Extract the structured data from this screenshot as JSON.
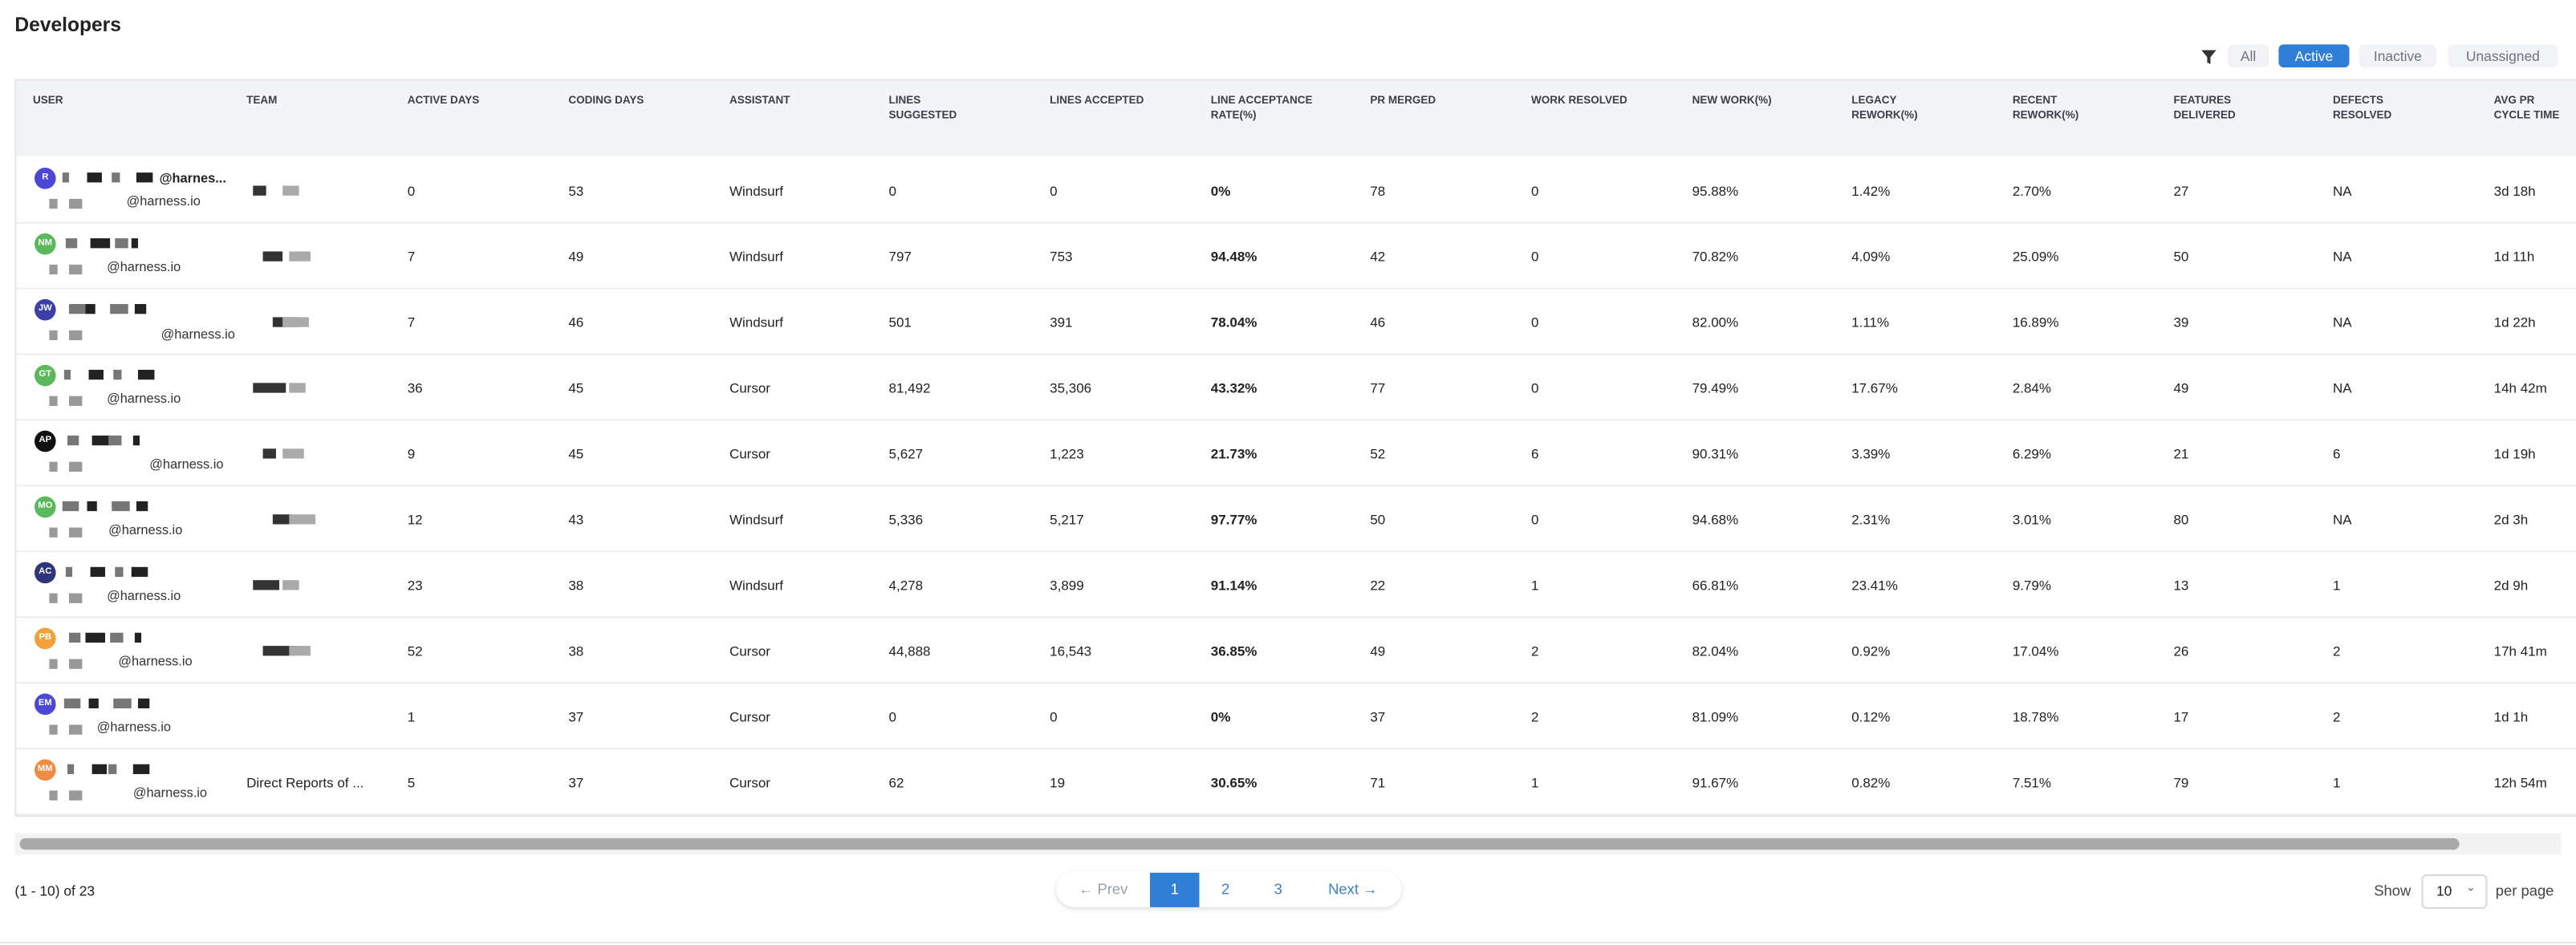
{
  "title": "Developers",
  "filters": [
    "All",
    "Active",
    "Inactive",
    "Unassigned"
  ],
  "table": {
    "columns": [
      "USER",
      "TEAM",
      "ACTIVE DAYS",
      "CODING DAYS",
      "ASSISTANT",
      "LINES SUGGESTED",
      "LINES ACCEPTED",
      "LINE ACCEPTANCE RATE(%)",
      "PR MERGED",
      "WORK RESOLVED",
      "NEW WORK(%)",
      "LEGACY REWORK(%)",
      "RECENT REWORK(%)",
      "FEATURES DELIVERED",
      "DEFECTS RESOLVED",
      "AVG PR CYCLE TIME"
    ],
    "rows": [
      {
        "initials": "R",
        "handle": "@harnes...",
        "email": "@harness.io",
        "cells": [
          "0",
          "53",
          "Windsurf",
          "0",
          "0",
          "0%",
          "78",
          "0",
          "95.88%",
          "1.42%",
          "2.70%",
          "27",
          "NA",
          "3d 18h"
        ]
      },
      {
        "initials": "NM",
        "email": "@harness.io",
        "cells": [
          "7",
          "49",
          "Windsurf",
          "797",
          "753",
          "94.48%",
          "42",
          "0",
          "70.82%",
          "4.09%",
          "25.09%",
          "50",
          "NA",
          "1d 11h"
        ]
      },
      {
        "initials": "JW",
        "email": "@harness.io",
        "cells": [
          "7",
          "46",
          "Windsurf",
          "501",
          "391",
          "78.04%",
          "46",
          "0",
          "82.00%",
          "1.11%",
          "16.89%",
          "39",
          "NA",
          "1d 22h"
        ]
      },
      {
        "initials": "GT",
        "email": "@harness.io",
        "cells": [
          "36",
          "45",
          "Cursor",
          "81,492",
          "35,306",
          "43.32%",
          "77",
          "0",
          "79.49%",
          "17.67%",
          "2.84%",
          "49",
          "NA",
          "14h 42m"
        ]
      },
      {
        "initials": "AP",
        "email": "@harness.io",
        "cells": [
          "9",
          "45",
          "Cursor",
          "5,627",
          "1,223",
          "21.73%",
          "52",
          "6",
          "90.31%",
          "3.39%",
          "6.29%",
          "21",
          "6",
          "1d 19h"
        ]
      },
      {
        "initials": "MO",
        "email": "@harness.io",
        "cells": [
          "12",
          "43",
          "Windsurf",
          "5,336",
          "5,217",
          "97.77%",
          "50",
          "0",
          "94.68%",
          "2.31%",
          "3.01%",
          "80",
          "NA",
          "2d 3h"
        ]
      },
      {
        "initials": "AC",
        "email": "@harness.io",
        "cells": [
          "23",
          "38",
          "Windsurf",
          "4,278",
          "3,899",
          "91.14%",
          "22",
          "1",
          "66.81%",
          "23.41%",
          "9.79%",
          "13",
          "1",
          "2d 9h"
        ]
      },
      {
        "initials": "PB",
        "email": "@harness.io",
        "cells": [
          "52",
          "38",
          "Cursor",
          "44,888",
          "16,543",
          "36.85%",
          "49",
          "2",
          "82.04%",
          "0.92%",
          "17.04%",
          "26",
          "2",
          "17h 41m"
        ]
      },
      {
        "initials": "EM",
        "email": "@harness.io",
        "cells": [
          "1",
          "37",
          "Cursor",
          "0",
          "0",
          "0%",
          "37",
          "2",
          "81.09%",
          "0.12%",
          "18.78%",
          "17",
          "2",
          "1d 1h"
        ]
      },
      {
        "initials": "MM",
        "email": "@harness.io",
        "team": "Direct Reports of ...",
        "cells": [
          "5",
          "37",
          "Cursor",
          "62",
          "19",
          "30.65%",
          "71",
          "1",
          "91.67%",
          "0.82%",
          "7.51%",
          "79",
          "1",
          "12h 54m"
        ]
      }
    ]
  },
  "footer": {
    "range": "(1 - 10) of 23",
    "pages": [
      "← Prev",
      "1",
      "2",
      "3",
      "Next →"
    ],
    "show": "Show",
    "page_size": "10",
    "per_page": "per page"
  }
}
